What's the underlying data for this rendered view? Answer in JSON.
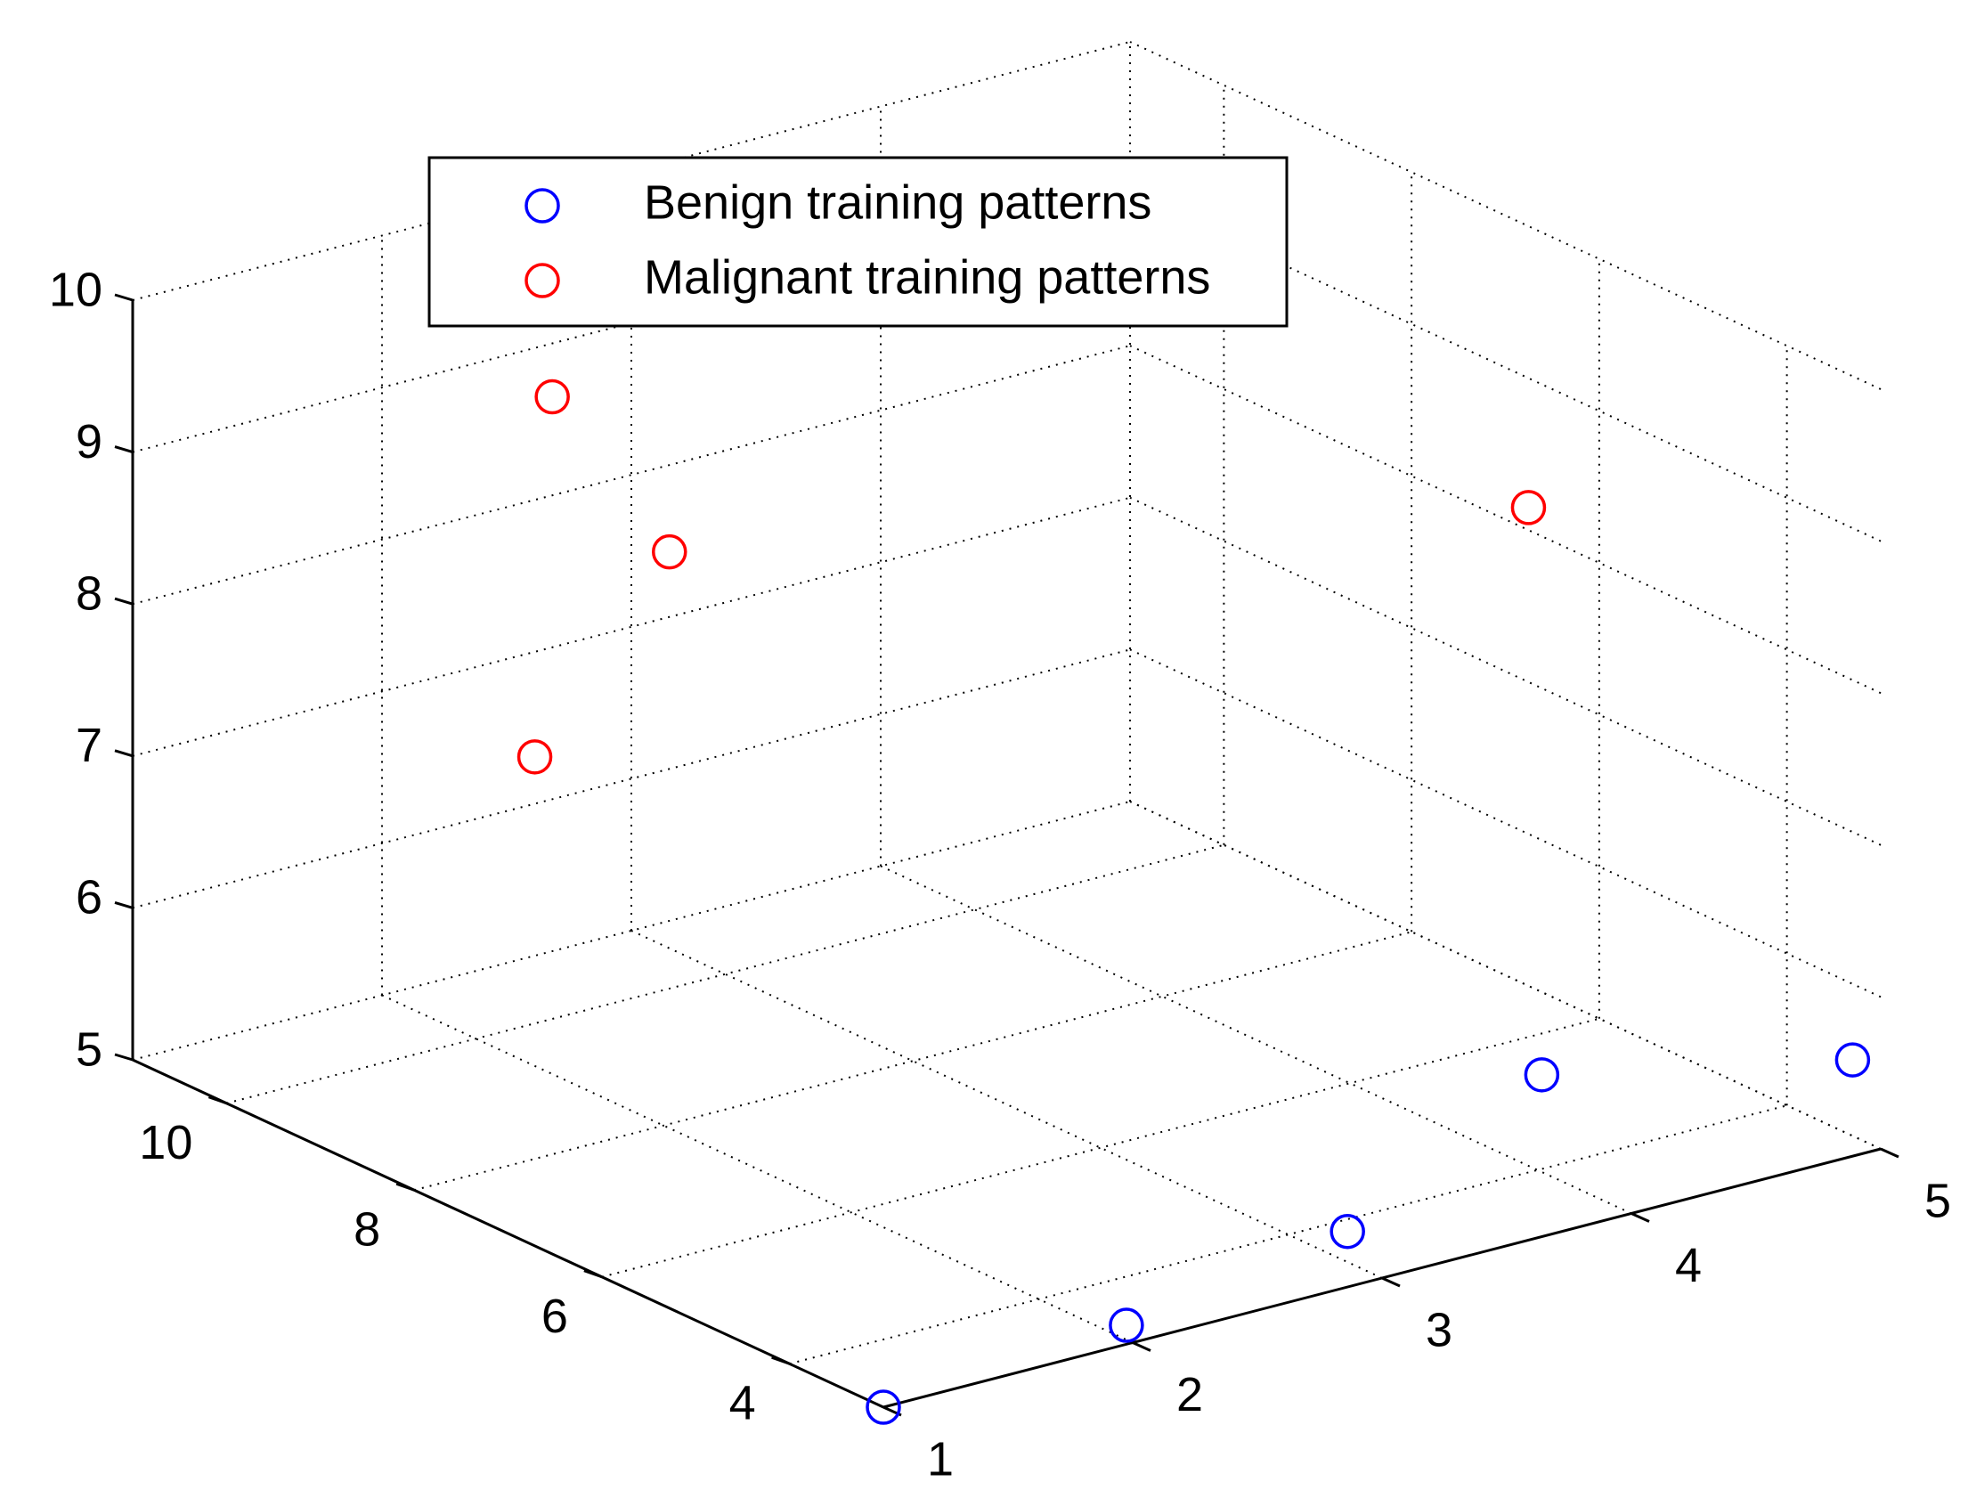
{
  "chart_data": {
    "type": "scatter3d",
    "series": [
      {
        "name": "Benign training patterns",
        "color": "#0000ff",
        "x": [
          1,
          2.08,
          3.17,
          4.54,
          5
        ],
        "y": [
          3,
          3.28,
          3.82,
          5.39,
          3.3
        ],
        "z": [
          5,
          5,
          5,
          5,
          5.5
        ]
      },
      {
        "name": "Malignant training patterns",
        "color": "#ff0000",
        "x": [
          1.93,
          2.4,
          1.86,
          4.34
        ],
        "y": [
          9,
          9,
          9,
          5
        ],
        "z": [
          9.54,
          8.32,
          7.2,
          8.93
        ]
      }
    ],
    "xlim": [
      1,
      5
    ],
    "ylim": [
      3,
      11
    ],
    "zlim": [
      5,
      10
    ],
    "xticks": [
      1,
      2,
      3,
      4,
      5
    ],
    "yticks": [
      4,
      6,
      8,
      10
    ],
    "zticks": [
      5,
      6,
      7,
      8,
      9,
      10
    ],
    "grid": true,
    "legend": "upper-left"
  }
}
